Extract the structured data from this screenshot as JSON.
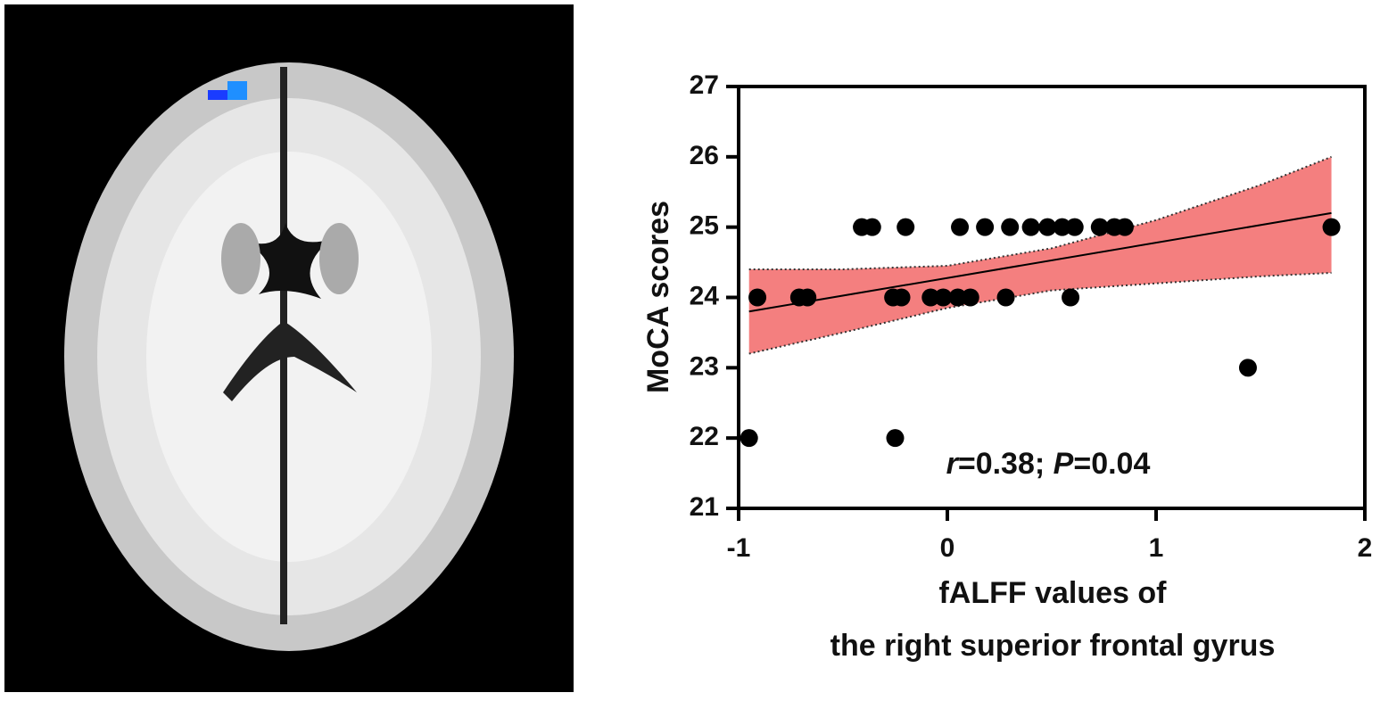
{
  "chart_data": {
    "type": "scatter",
    "x": [
      -0.95,
      -0.25,
      -0.91,
      -0.71,
      -0.67,
      -0.26,
      -0.22,
      -0.08,
      -0.02,
      0.05,
      0.11,
      0.28,
      0.59,
      -0.41,
      -0.36,
      -0.2,
      0.06,
      0.18,
      0.3,
      0.4,
      0.48,
      0.55,
      0.61,
      0.73,
      0.8,
      0.85,
      1.84,
      1.44
    ],
    "y": [
      22,
      22,
      24,
      24,
      24,
      24,
      24,
      24,
      24,
      24,
      24,
      24,
      24,
      25,
      25,
      25,
      25,
      25,
      25,
      25,
      25,
      25,
      25,
      25,
      25,
      25,
      25,
      23
    ],
    "color": "#000000",
    "fit": {
      "x": [
        -0.95,
        1.84
      ],
      "y": [
        23.8,
        25.2
      ]
    },
    "band": {
      "color": "#f47f7f",
      "x": [
        -0.95,
        -0.5,
        0,
        0.5,
        1,
        1.5,
        1.84
      ],
      "upper": [
        24.4,
        24.4,
        24.45,
        24.7,
        25.1,
        25.6,
        26.0
      ],
      "lower": [
        23.2,
        23.5,
        23.85,
        24.1,
        24.2,
        24.3,
        24.35
      ]
    },
    "xlim": [
      -1,
      2
    ],
    "ylim": [
      21,
      27
    ],
    "xticks": [
      -1,
      0,
      1,
      2
    ],
    "yticks": [
      21,
      22,
      23,
      24,
      25,
      26,
      27
    ],
    "ylabel": "MoCA scores",
    "xlabel": [
      "fALFF values of",
      "the right superior frontal gyrus"
    ],
    "annotation": [
      "r",
      "=0.38; ",
      "P",
      "=0.04"
    ]
  }
}
